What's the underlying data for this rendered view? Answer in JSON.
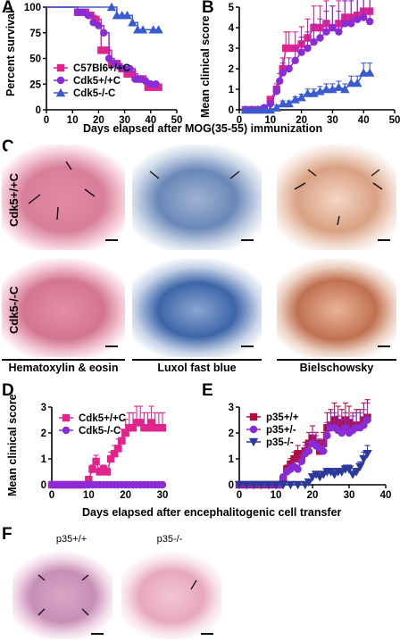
{
  "panels": {
    "A": "A",
    "B": "B",
    "C": "C",
    "D": "D",
    "E": "E",
    "F": "F"
  },
  "texts": {
    "top_xlabel": "Days elapsed after MOG(35-55) immunization",
    "bottom_xlabel": "Days elapsed after encephalitogenic cell transfer",
    "stain_he": "Hematoxylin & eosin",
    "stain_lfb": "Luxol fast blue",
    "stain_biel": "Bielschowsky",
    "row_wt": "Cdk5+/+C",
    "row_ko": "Cdk5-/-C",
    "f_wt": "p35+/+",
    "f_ko": "p35-/-"
  },
  "colors": {
    "magenta": "#e0248c",
    "purple": "#8a2bd6",
    "blue": "#3a5bd0",
    "navy": "#2b3a9a"
  },
  "chart_data": [
    {
      "panel": "A",
      "type": "line",
      "ylabel": "Percent survival",
      "xlim": [
        0,
        50
      ],
      "ylim": [
        0,
        100
      ],
      "xticks": [
        0,
        10,
        20,
        30,
        40,
        50
      ],
      "yticks": [
        0,
        25,
        50,
        75,
        100
      ],
      "legend": "bottom-left",
      "series": [
        {
          "name": "C57Bl6+/+C",
          "color": "#e0248c",
          "marker": "square",
          "x": [
            0,
            12,
            15,
            17,
            19,
            21,
            23,
            25,
            27,
            29,
            31,
            33,
            35,
            37,
            39,
            41,
            43
          ],
          "y": [
            100,
            95,
            95,
            92,
            88,
            58,
            58,
            45,
            45,
            40,
            35,
            35,
            30,
            30,
            22,
            22,
            22
          ]
        },
        {
          "name": "Cdk5+/+C",
          "color": "#8a2bd6",
          "marker": "circle",
          "x": [
            0,
            12,
            14,
            16,
            18,
            20,
            22,
            24,
            26,
            28,
            30,
            32,
            34,
            36,
            38,
            40,
            42
          ],
          "y": [
            100,
            95,
            95,
            92,
            85,
            82,
            75,
            50,
            45,
            42,
            40,
            40,
            30,
            30,
            28,
            25,
            25
          ]
        },
        {
          "name": "Cdk5-/-C",
          "color": "#3a5bd0",
          "marker": "triangle",
          "x": [
            0,
            25,
            27,
            29,
            31,
            33,
            35,
            37,
            41,
            43
          ],
          "y": [
            100,
            100,
            92,
            92,
            92,
            85,
            78,
            78,
            78,
            78
          ]
        }
      ]
    },
    {
      "panel": "B",
      "type": "line",
      "ylabel": "Mean clinical score",
      "xlim": [
        0,
        50
      ],
      "ylim": [
        0,
        5
      ],
      "xticks": [
        0,
        10,
        20,
        30,
        40,
        50
      ],
      "yticks": [
        0,
        1,
        2,
        3,
        4,
        5
      ],
      "series": [
        {
          "name": "C57Bl6+/+C",
          "color": "#e0248c",
          "marker": "square",
          "x": [
            2,
            4,
            6,
            8,
            10,
            12,
            14,
            15,
            16,
            18,
            20,
            22,
            24,
            26,
            28,
            30,
            32,
            34,
            36,
            38,
            40,
            42
          ],
          "y": [
            0,
            0,
            0,
            0,
            0.5,
            1.0,
            2.0,
            3.0,
            3.0,
            3.0,
            3.2,
            3.5,
            4.0,
            4.0,
            4.2,
            4.0,
            4.2,
            4.5,
            4.5,
            4.6,
            4.8,
            4.8
          ]
        },
        {
          "name": "Cdk5+/+C",
          "color": "#8a2bd6",
          "marker": "circle",
          "x": [
            2,
            4,
            6,
            8,
            10,
            12,
            13,
            14,
            16,
            18,
            20,
            22,
            24,
            26,
            28,
            30,
            32,
            34,
            36,
            38,
            40,
            42
          ],
          "y": [
            0,
            0,
            0,
            0.1,
            0.3,
            0.9,
            1.4,
            1.8,
            2.0,
            2.4,
            2.8,
            3.0,
            3.3,
            3.5,
            3.8,
            4.0,
            3.8,
            4.2,
            4.2,
            4.4,
            4.5,
            4.3
          ]
        },
        {
          "name": "Cdk5-/-C",
          "color": "#3a5bd0",
          "marker": "triangle",
          "x": [
            2,
            4,
            6,
            8,
            10,
            12,
            14,
            16,
            18,
            20,
            22,
            24,
            26,
            28,
            30,
            32,
            34,
            36,
            38,
            40,
            42
          ],
          "y": [
            0,
            0,
            0,
            0,
            0,
            0.1,
            0.3,
            0.3,
            0.5,
            0.6,
            0.8,
            0.8,
            0.9,
            1.0,
            1.0,
            1.1,
            1.0,
            1.3,
            1.3,
            1.8,
            1.8
          ]
        }
      ]
    },
    {
      "panel": "D",
      "type": "line",
      "ylabel": "Mean clinical score",
      "xlim": [
        0,
        30
      ],
      "ylim": [
        0,
        3
      ],
      "xticks": [
        0,
        10,
        20,
        30
      ],
      "yticks": [
        0,
        1,
        2,
        3
      ],
      "legend": "top-left",
      "series": [
        {
          "name": "Cdk5+/+C",
          "color": "#e0248c",
          "marker": "square",
          "x": [
            0,
            1,
            2,
            3,
            4,
            5,
            6,
            7,
            8,
            9,
            10,
            11,
            12,
            13,
            14,
            15,
            16,
            17,
            18,
            19,
            20,
            21,
            22,
            23,
            24,
            25,
            26,
            27,
            28,
            29,
            30
          ],
          "y": [
            0,
            0,
            0,
            0,
            0,
            0,
            0,
            0,
            0,
            0,
            0.2,
            0.6,
            0.9,
            0.5,
            0.6,
            0.5,
            1.0,
            1.2,
            1.4,
            1.7,
            2.0,
            2.2,
            2.2,
            2.4,
            2.4,
            2.2,
            2.2,
            2.4,
            2.2,
            2.2,
            2.2
          ]
        },
        {
          "name": "Cdk5-/-C",
          "color": "#8a2bd6",
          "marker": "circle",
          "x": [
            0,
            1,
            2,
            3,
            4,
            5,
            6,
            7,
            8,
            9,
            10,
            11,
            12,
            13,
            14,
            15,
            16,
            17,
            18,
            19,
            20,
            21,
            22,
            23,
            24,
            25,
            26,
            27,
            28,
            29,
            30
          ],
          "y": [
            0,
            0,
            0,
            0,
            0,
            0,
            0,
            0,
            0,
            0,
            0,
            0,
            0,
            0,
            0,
            0,
            0,
            0,
            0,
            0,
            0,
            0,
            0,
            0,
            0,
            0,
            0,
            0,
            0,
            0,
            0
          ]
        }
      ]
    },
    {
      "panel": "E",
      "type": "line",
      "xlim": [
        0,
        40
      ],
      "ylim": [
        0,
        3
      ],
      "xticks": [
        0,
        10,
        20,
        30,
        40
      ],
      "yticks": [
        0,
        1,
        2,
        3
      ],
      "legend": "top-left",
      "series": [
        {
          "name": "p35+/+",
          "color": "#b01040",
          "marker": "square",
          "x": [
            0,
            2,
            4,
            6,
            8,
            10,
            11,
            12,
            13,
            14,
            15,
            16,
            17,
            18,
            19,
            20,
            21,
            22,
            23,
            24,
            25,
            26,
            27,
            28,
            29,
            30,
            31,
            32,
            33,
            34,
            35
          ],
          "y": [
            0,
            0,
            0,
            0,
            0,
            0,
            0,
            0.2,
            0.6,
            0.8,
            1.0,
            1.2,
            1.0,
            1.3,
            1.6,
            1.8,
            1.6,
            1.3,
            1.6,
            2.2,
            2.3,
            2.5,
            2.4,
            2.3,
            2.5,
            2.4,
            2.2,
            2.3,
            2.3,
            2.5,
            2.6
          ]
        },
        {
          "name": "p35+/-",
          "color": "#8a2bd6",
          "marker": "circle",
          "x": [
            0,
            2,
            4,
            6,
            8,
            10,
            11,
            12,
            13,
            14,
            15,
            16,
            17,
            18,
            19,
            20,
            21,
            22,
            23,
            24,
            25,
            26,
            27,
            28,
            29,
            30,
            31,
            32,
            33,
            34,
            35
          ],
          "y": [
            0,
            0,
            0,
            0,
            0,
            0,
            0,
            0.3,
            0.5,
            0.6,
            0.7,
            0.6,
            0.9,
            1.2,
            1.3,
            1.6,
            1.5,
            1.4,
            1.3,
            1.9,
            2.2,
            2.2,
            2.1,
            2.0,
            2.2,
            2.0,
            2.1,
            2.2,
            2.2,
            2.3,
            2.5
          ]
        },
        {
          "name": "p35-/-",
          "color": "#2b3a9a",
          "marker": "triangle-down",
          "x": [
            0,
            2,
            4,
            6,
            8,
            10,
            12,
            14,
            16,
            18,
            19,
            20,
            21,
            22,
            23,
            24,
            25,
            26,
            27,
            28,
            29,
            30,
            31,
            32,
            33,
            34,
            35
          ],
          "y": [
            0,
            0,
            0,
            0,
            0,
            0,
            0,
            0,
            0,
            0,
            0.1,
            0.3,
            0.4,
            0.3,
            0.4,
            0.5,
            0.5,
            0.4,
            0.5,
            0.5,
            0.6,
            0.6,
            0.4,
            0.5,
            0.7,
            1.0,
            1.2
          ]
        }
      ]
    }
  ]
}
